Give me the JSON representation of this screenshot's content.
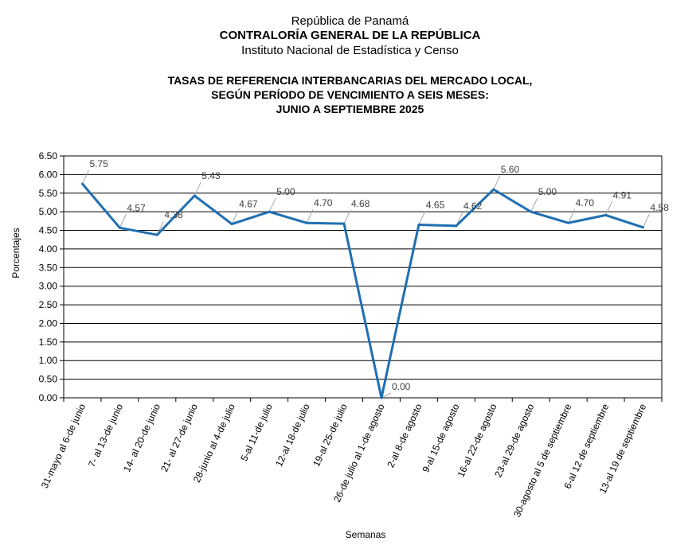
{
  "header": {
    "line1": "República de Panamá",
    "line2": "CONTRALORÍA GENERAL DE LA REPÚBLICA",
    "line3": "Instituto  Nacional de Estadística y Censo"
  },
  "chart_data": {
    "type": "line",
    "title": [
      "TASAS DE REFERENCIA INTERBANCARIAS DEL MERCADO LOCAL,",
      "SEGÚN PERÍODO DE VENCIMIENTO A SEIS MESES:",
      "JUNIO A SEPTIEMBRE 2025"
    ],
    "xlabel": "Semanas",
    "ylabel": "Porcentajes",
    "ylim": [
      0,
      6.5
    ],
    "yticks": [
      "0.00",
      "0.50",
      "1.00",
      "1.50",
      "2.00",
      "2.50",
      "3.00",
      "3.50",
      "4.00",
      "4.50",
      "5.00",
      "5.50",
      "6.00",
      "6.50"
    ],
    "grid": true,
    "line_color": "#1F6FB2",
    "categories": [
      "31-mayo al 6-de junio",
      "7- al 13-de junio",
      "14- al 20-de junio",
      "21- al 27-de junio",
      "28-junio al 4-de julio",
      "5-al 11-de julio",
      "12-al 18-de julio",
      "19-al 25-de julio",
      "26-de julio al 1-de agosto",
      "2-al 8-de agosto",
      "9-al 15-de agosto",
      "16-al 22-de agosto",
      "23-al 29-de agosto",
      "30-agosto al 5 de septiembre",
      "6-al 12 de septiembre",
      "13-al 19 de septiembre"
    ],
    "values": [
      5.75,
      4.57,
      4.38,
      5.43,
      4.67,
      5.0,
      4.7,
      4.68,
      0.0,
      4.65,
      4.62,
      5.6,
      5.0,
      4.7,
      4.91,
      4.58
    ],
    "labels": [
      "5.75",
      "4.57",
      "4.38",
      "5.43",
      "4.67",
      "5.00",
      "4.70",
      "4.68",
      "0.00",
      "4.65",
      "4.62",
      "5.60",
      "5.00",
      "4.70",
      "4.91",
      "4.58"
    ]
  }
}
